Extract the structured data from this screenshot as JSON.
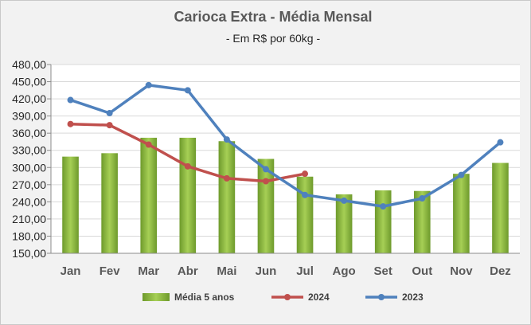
{
  "chart_data": {
    "type": "bar",
    "title": "Carioca Extra - Média Mensal",
    "subtitle": "- Em R$ por 60kg -",
    "categories": [
      "Jan",
      "Fev",
      "Mar",
      "Abr",
      "Mai",
      "Jun",
      "Jul",
      "Ago",
      "Set",
      "Out",
      "Nov",
      "Dez"
    ],
    "ylim": [
      150,
      480
    ],
    "yticks": [
      150,
      180,
      210,
      240,
      270,
      300,
      330,
      360,
      390,
      420,
      450,
      480
    ],
    "ytick_labels": [
      "150,00",
      "180,00",
      "210,00",
      "240,00",
      "270,00",
      "300,00",
      "330,00",
      "360,00",
      "390,00",
      "420,00",
      "450,00",
      "480,00"
    ],
    "grid": true,
    "legend_position": "bottom",
    "series": [
      {
        "name": "Média 5 anos",
        "type": "bar",
        "color": "#8cbd3f",
        "values": [
          319,
          325,
          352,
          352,
          346,
          315,
          284,
          253,
          260,
          259,
          289,
          308
        ]
      },
      {
        "name": "2024",
        "type": "line",
        "color": "#c0504d",
        "values": [
          376,
          374,
          340,
          302,
          281,
          276,
          289,
          null,
          null,
          null,
          null,
          null
        ]
      },
      {
        "name": "2023",
        "type": "line",
        "color": "#4f81bd",
        "values": [
          418,
          395,
          444,
          435,
          349,
          297,
          252,
          242,
          232,
          246,
          287,
          344
        ]
      }
    ]
  }
}
